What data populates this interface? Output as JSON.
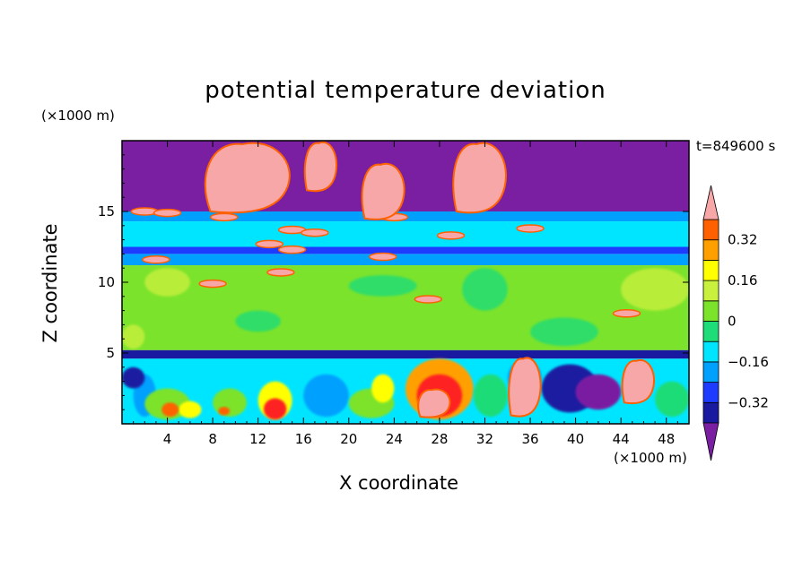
{
  "chart_data": {
    "type": "heatmap",
    "title": "potential temperature deviation",
    "xlabel": "X coordinate",
    "ylabel": "Z coordinate",
    "x_unit": "(×1000 m)",
    "y_unit": "(×1000 m)",
    "time_label": "t=849600 s",
    "xlim": [
      0,
      50
    ],
    "ylim": [
      0,
      20
    ],
    "x_ticks": [
      4,
      8,
      12,
      16,
      20,
      24,
      28,
      32,
      36,
      40,
      44,
      48
    ],
    "y_ticks": [
      5,
      10,
      15
    ],
    "x_tick_labels": [
      "4",
      "8",
      "12",
      "16",
      "20",
      "24",
      "28",
      "32",
      "36",
      "40",
      "44",
      "48"
    ],
    "y_tick_labels": [
      "5",
      "10",
      "15"
    ],
    "colorbar": {
      "levels": [
        -0.4,
        -0.32,
        -0.24,
        -0.16,
        -0.08,
        0,
        0.08,
        0.16,
        0.24,
        0.32,
        0.4
      ],
      "labels": [
        "0.32",
        "0.16",
        "0",
        "−0.16",
        "−0.32"
      ],
      "label_values": [
        0.32,
        0.16,
        0,
        -0.16,
        -0.32
      ],
      "colors": [
        "#7a1fa2",
        "#1a1aa0",
        "#1e3cff",
        "#00a0ff",
        "#00e5ff",
        "#1edc78",
        "#7ce32c",
        "#c8f03c",
        "#ffff00",
        "#ffa000",
        "#ff6000",
        "#ff2020",
        "#f7a7a7"
      ],
      "extend": "both"
    },
    "bands": [
      {
        "z": [
          15,
          20
        ],
        "level": "below"
      },
      {
        "z": [
          14.3,
          15
        ],
        "level": "-0.16"
      },
      {
        "z": [
          12.5,
          14.3
        ],
        "level": "-0.08"
      },
      {
        "z": [
          12.0,
          12.5
        ],
        "level": "-0.24"
      },
      {
        "z": [
          11.2,
          12.0
        ],
        "level": "-0.16"
      },
      {
        "z": [
          5.2,
          11.2
        ],
        "level": "0.08"
      },
      {
        "z": [
          4.6,
          5.2
        ],
        "level": "-0.32"
      },
      {
        "z": [
          0,
          4.6
        ],
        "level": "mixed"
      }
    ],
    "warm_features": [
      {
        "x": [
          7,
          15
        ],
        "z": [
          15,
          20
        ]
      },
      {
        "x": [
          16,
          19
        ],
        "z": [
          16.5,
          20
        ]
      },
      {
        "x": [
          21,
          25
        ],
        "z": [
          14.5,
          18.5
        ]
      },
      {
        "x": [
          29,
          34
        ],
        "z": [
          15,
          20
        ]
      },
      {
        "x": [
          34,
          37
        ],
        "z": [
          0.6,
          4.8
        ]
      },
      {
        "x": [
          44,
          47
        ],
        "z": [
          1.5,
          4.6
        ]
      },
      {
        "x": [
          26,
          29
        ],
        "z": [
          0.5,
          2.5
        ]
      }
    ]
  }
}
